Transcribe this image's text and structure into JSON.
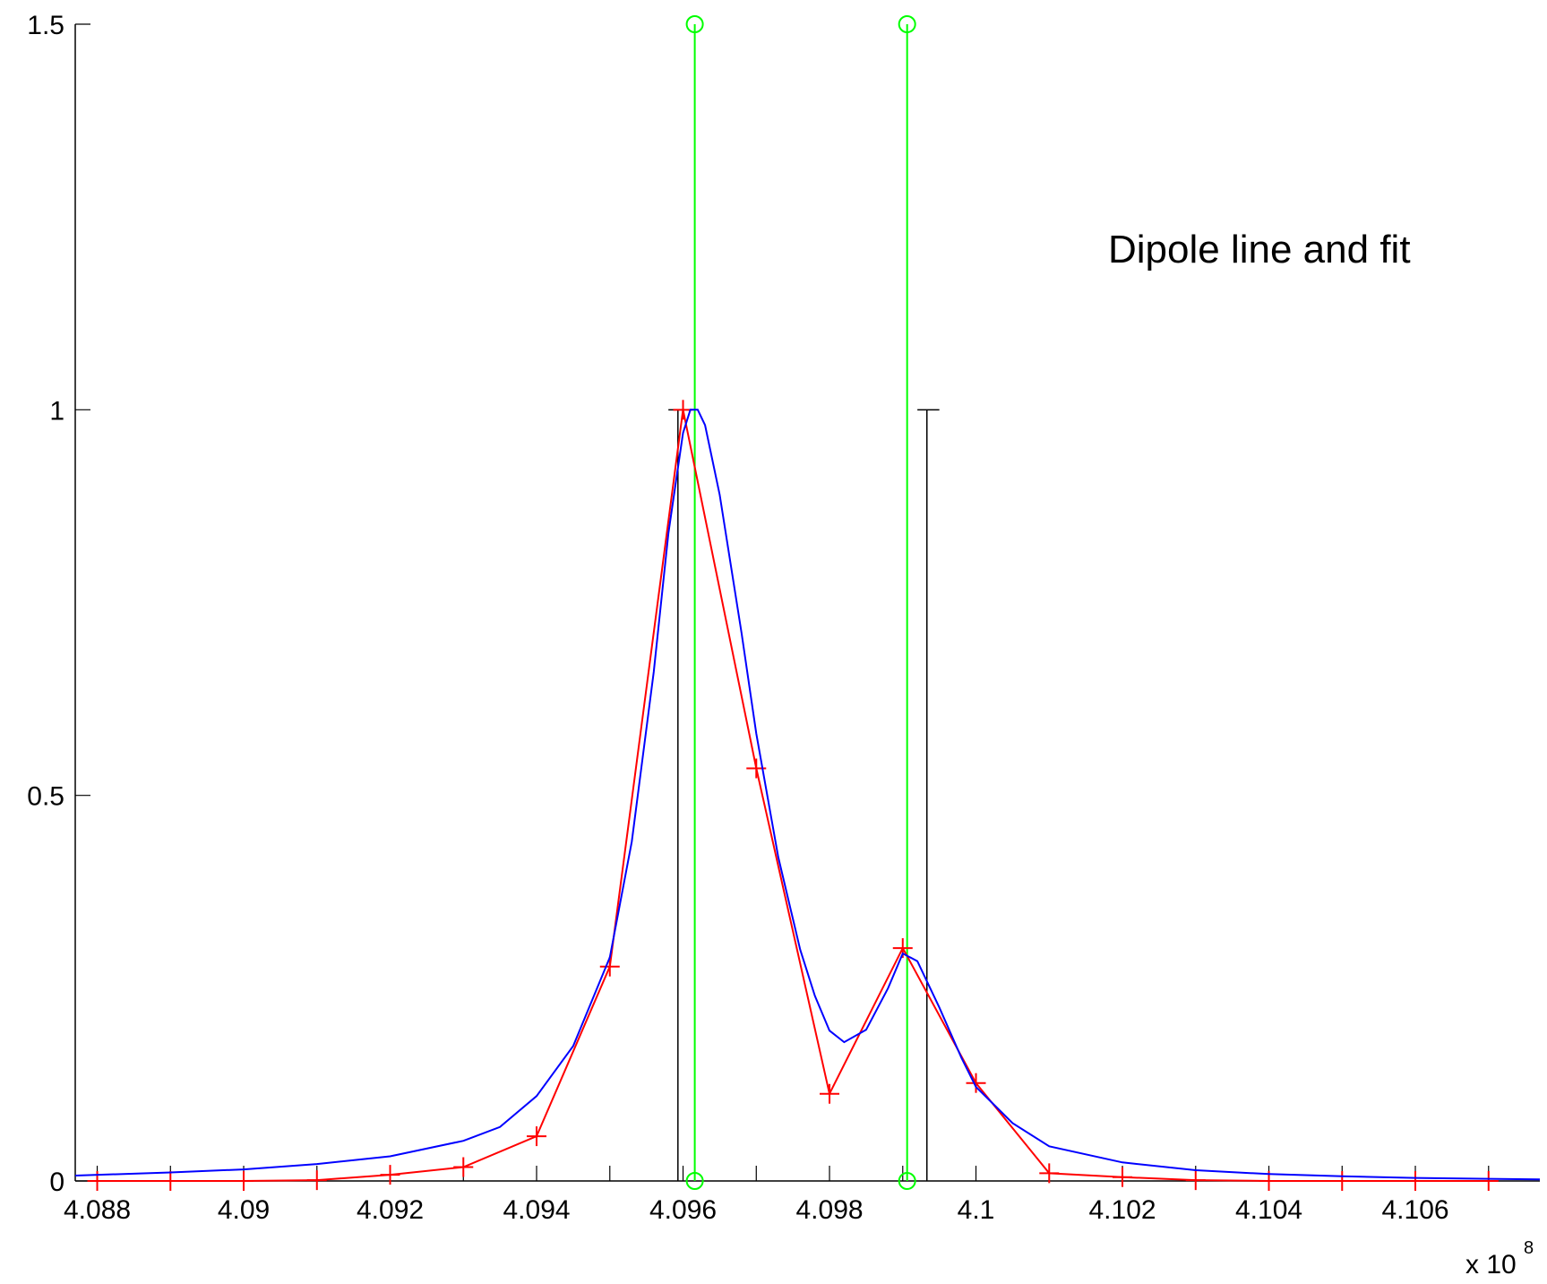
{
  "chart_data": {
    "type": "line",
    "title": "",
    "xlabel": "",
    "ylabel": "",
    "x_multiplier_label": "x 10",
    "x_multiplier_exponent": "8",
    "annotation": "Dipole line and fit",
    "xlim": [
      4.0877,
      4.1077
    ],
    "ylim": [
      0,
      1.5
    ],
    "x_ticks": [
      4.088,
      4.09,
      4.092,
      4.094,
      4.096,
      4.098,
      4.1,
      4.102,
      4.104,
      4.106
    ],
    "x_tick_labels": [
      "4.088",
      "4.09",
      "4.092",
      "4.094",
      "4.096",
      "4.098",
      "4.1",
      "4.102",
      "4.104",
      "4.106"
    ],
    "x_minor_ticks": [
      4.088,
      4.089,
      4.09,
      4.091,
      4.092,
      4.093,
      4.094,
      4.095,
      4.096,
      4.097,
      4.098,
      4.099,
      4.1,
      4.101,
      4.102,
      4.103,
      4.104,
      4.105,
      4.106,
      4.107
    ],
    "y_ticks": [
      0,
      0.5,
      1,
      1.5
    ],
    "y_tick_labels": [
      "0",
      "0.5",
      "1",
      "1.5"
    ],
    "grid": false,
    "colors": {
      "data": "#ff0000",
      "fit": "#0000ff",
      "peaks": "#00ff00",
      "markers": "#000000"
    },
    "series": [
      {
        "role": "data",
        "style": "line-plus",
        "x": [
          4.088,
          4.089,
          4.09,
          4.091,
          4.092,
          4.093,
          4.094,
          4.095,
          4.096,
          4.097,
          4.098,
          4.099,
          4.1,
          4.101,
          4.102,
          4.103,
          4.104,
          4.105,
          4.106,
          4.107
        ],
        "y": [
          0.0,
          0.0,
          0.0,
          0.001,
          0.008,
          0.018,
          0.058,
          0.278,
          1.0,
          0.535,
          0.113,
          0.302,
          0.127,
          0.01,
          0.005,
          0.001,
          0.0,
          0.0,
          0.0,
          0.0
        ]
      },
      {
        "role": "fit",
        "style": "line",
        "x": [
          4.0877,
          4.089,
          4.09,
          4.091,
          4.092,
          4.093,
          4.0935,
          4.094,
          4.0945,
          4.095,
          4.0953,
          4.0956,
          4.0958,
          4.096,
          4.0961,
          4.0962,
          4.0963,
          4.0965,
          4.0968,
          4.097,
          4.0973,
          4.0976,
          4.0978,
          4.098,
          4.0982,
          4.0985,
          4.0988,
          4.099,
          4.0992,
          4.0995,
          4.0998,
          4.1,
          4.1005,
          4.101,
          4.102,
          4.103,
          4.104,
          4.105,
          4.106,
          4.1077
        ],
        "y": [
          0.007,
          0.011,
          0.015,
          0.022,
          0.032,
          0.052,
          0.07,
          0.11,
          0.175,
          0.29,
          0.44,
          0.66,
          0.84,
          0.97,
          1.0,
          1.0,
          0.98,
          0.89,
          0.71,
          0.58,
          0.42,
          0.3,
          0.24,
          0.195,
          0.18,
          0.196,
          0.25,
          0.295,
          0.285,
          0.225,
          0.16,
          0.122,
          0.075,
          0.045,
          0.024,
          0.014,
          0.009,
          0.006,
          0.004,
          0.002
        ]
      }
    ],
    "peak_lines": [
      {
        "x": 4.09616,
        "y": [
          0,
          1.5
        ]
      },
      {
        "x": 4.09906,
        "y": [
          0,
          1.5
        ]
      }
    ],
    "bracket_lines": [
      {
        "x": 4.09593,
        "y": [
          0,
          1.0
        ],
        "cap_x": [
          4.0958,
          4.0961
        ]
      },
      {
        "x": 4.09933,
        "y": [
          0,
          1.0
        ],
        "cap_x": [
          4.0992,
          4.0995
        ]
      }
    ]
  }
}
